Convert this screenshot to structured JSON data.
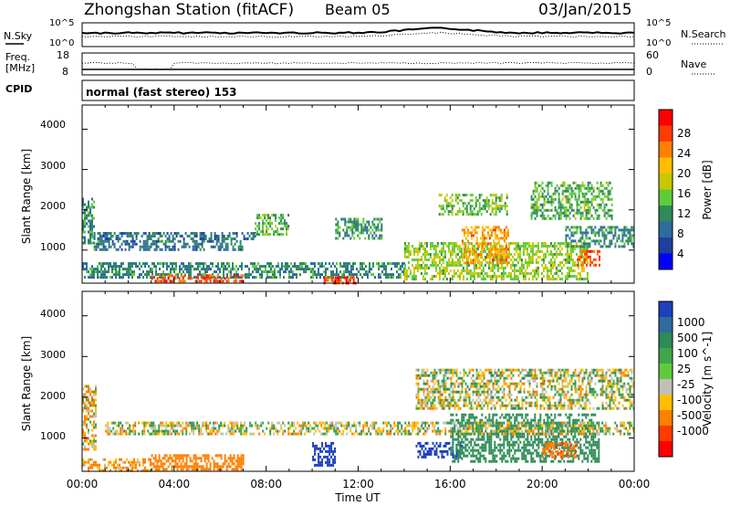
{
  "header": {
    "station": "Zhongshan Station (fitACF)",
    "beam": "Beam 05",
    "date": "03/Jan/2015"
  },
  "noise_panel": {
    "left_label": "N.Sky",
    "right_label": "N.Search",
    "left_ticks": [
      "10^5",
      "10^0"
    ],
    "right_ticks": [
      "10^5",
      "10^0"
    ]
  },
  "freq_panel": {
    "left_label_lines": [
      "Freq.",
      "[MHz]"
    ],
    "right_label": "Nave",
    "left_ticks": [
      "18",
      "8"
    ],
    "right_ticks": [
      "60",
      "0"
    ]
  },
  "cpid": {
    "label": "CPID",
    "value": "normal (fast stereo) 153"
  },
  "time_axis": {
    "label": "Time UT",
    "tick_labels": [
      "00:00",
      "04:00",
      "08:00",
      "12:00",
      "16:00",
      "20:00",
      "00:00"
    ]
  },
  "panels": [
    {
      "id": "power",
      "ylabel": "Slant Range [km]",
      "y_tick_labels": [
        "1000",
        "2000",
        "3000",
        "4000"
      ],
      "colorbar_label": "Power [dB]",
      "colorbar_tick_labels": [
        "28",
        "24",
        "20",
        "16",
        "12",
        "8",
        "4"
      ],
      "colorbar_colors": [
        "#ff0000",
        "#ff3c00",
        "#ff7f00",
        "#ffbf00",
        "#c8c800",
        "#5ecc3a",
        "#2e8b57",
        "#2f6b9e",
        "#1f3fa0",
        "#0000ff"
      ]
    },
    {
      "id": "velocity",
      "ylabel": "Slant Range [km]",
      "y_tick_labels": [
        "1000",
        "2000",
        "3000",
        "4000"
      ],
      "colorbar_label": "Velocity [m s^-1]",
      "colorbar_tick_labels": [
        "1000",
        "500",
        "100",
        "25",
        "-25",
        "-100",
        "-500",
        "-1000"
      ],
      "colorbar_colors": [
        "#1f3fbf",
        "#2f6b9e",
        "#2e8b57",
        "#3fa64a",
        "#5ecc3a",
        "#c0c0b8",
        "#ffbf00",
        "#ff7f00",
        "#ff3c00",
        "#ff0000"
      ],
      "ground_scatter_color": "#c0c0b8"
    }
  ],
  "chart_data": {
    "type": "heatmap",
    "title": "Zhongshan Station (fitACF)",
    "subtitle": "Beam 05",
    "date": "03/Jan/2015",
    "xlabel": "Time UT",
    "ylabel": "Slant Range [km]",
    "xlim_hours": [
      0,
      24
    ],
    "ylim_km": [
      180,
      4600
    ],
    "x_ticks": [
      "00:00",
      "04:00",
      "08:00",
      "12:00",
      "16:00",
      "20:00",
      "00:00"
    ],
    "y_ticks": [
      1000,
      2000,
      3000,
      4000
    ],
    "power_scale_db": [
      0,
      30
    ],
    "velocity_scale_ms": [
      -1000,
      1000
    ],
    "power_regions": [
      {
        "t0": 0.0,
        "t1": 0.5,
        "r0": 1200,
        "r1": 2300,
        "level": 10
      },
      {
        "t0": 0.5,
        "t1": 7.0,
        "r0": 1000,
        "r1": 1250,
        "level": 8
      },
      {
        "t0": 0.5,
        "t1": 7.5,
        "r0": 1300,
        "r1": 1450,
        "level": 7
      },
      {
        "t0": 0.0,
        "t1": 14.0,
        "r0": 300,
        "r1": 700,
        "level": 9
      },
      {
        "t0": 3.0,
        "t1": 7.0,
        "r0": 200,
        "r1": 400,
        "level": 26
      },
      {
        "t0": 10.5,
        "t1": 12.0,
        "r0": 200,
        "r1": 350,
        "level": 27
      },
      {
        "t0": 7.5,
        "t1": 9.0,
        "r0": 1400,
        "r1": 1900,
        "level": 12
      },
      {
        "t0": 11.0,
        "t1": 13.0,
        "r0": 1300,
        "r1": 1800,
        "level": 10
      },
      {
        "t0": 14.0,
        "t1": 22.0,
        "r0": 300,
        "r1": 1200,
        "level": 15
      },
      {
        "t0": 16.5,
        "t1": 18.5,
        "r0": 700,
        "r1": 1600,
        "level": 22
      },
      {
        "t0": 15.5,
        "t1": 18.5,
        "r0": 1900,
        "r1": 2400,
        "level": 13
      },
      {
        "t0": 19.5,
        "t1": 23.0,
        "r0": 1800,
        "r1": 2700,
        "level": 12
      },
      {
        "t0": 21.5,
        "t1": 22.5,
        "r0": 600,
        "r1": 1000,
        "level": 25
      },
      {
        "t0": 21.0,
        "t1": 24.0,
        "r0": 1100,
        "r1": 1600,
        "level": 9
      }
    ],
    "velocity_regions": [
      {
        "t0": 3.0,
        "t1": 7.0,
        "r0": 200,
        "r1": 600,
        "value": -300
      },
      {
        "t0": 0.0,
        "t1": 3.0,
        "r0": 200,
        "r1": 500,
        "value": -120
      },
      {
        "t0": 0.0,
        "t1": 0.6,
        "r0": 700,
        "r1": 2300,
        "value": -60
      },
      {
        "t0": 10.0,
        "t1": 11.0,
        "r0": 300,
        "r1": 900,
        "value": 700
      },
      {
        "t0": 14.5,
        "t1": 16.5,
        "r0": 500,
        "r1": 900,
        "value": 800
      },
      {
        "t0": 16.0,
        "t1": 22.5,
        "r0": 400,
        "r1": 1600,
        "value": 300
      },
      {
        "t0": 1.0,
        "t1": 24.0,
        "r0": 1100,
        "r1": 1400,
        "value": 0
      },
      {
        "t0": 14.5,
        "t1": 24.0,
        "r0": 1700,
        "r1": 2700,
        "value": 0
      },
      {
        "t0": 20.0,
        "t1": 21.5,
        "r0": 500,
        "r1": 900,
        "value": -400
      }
    ]
  }
}
